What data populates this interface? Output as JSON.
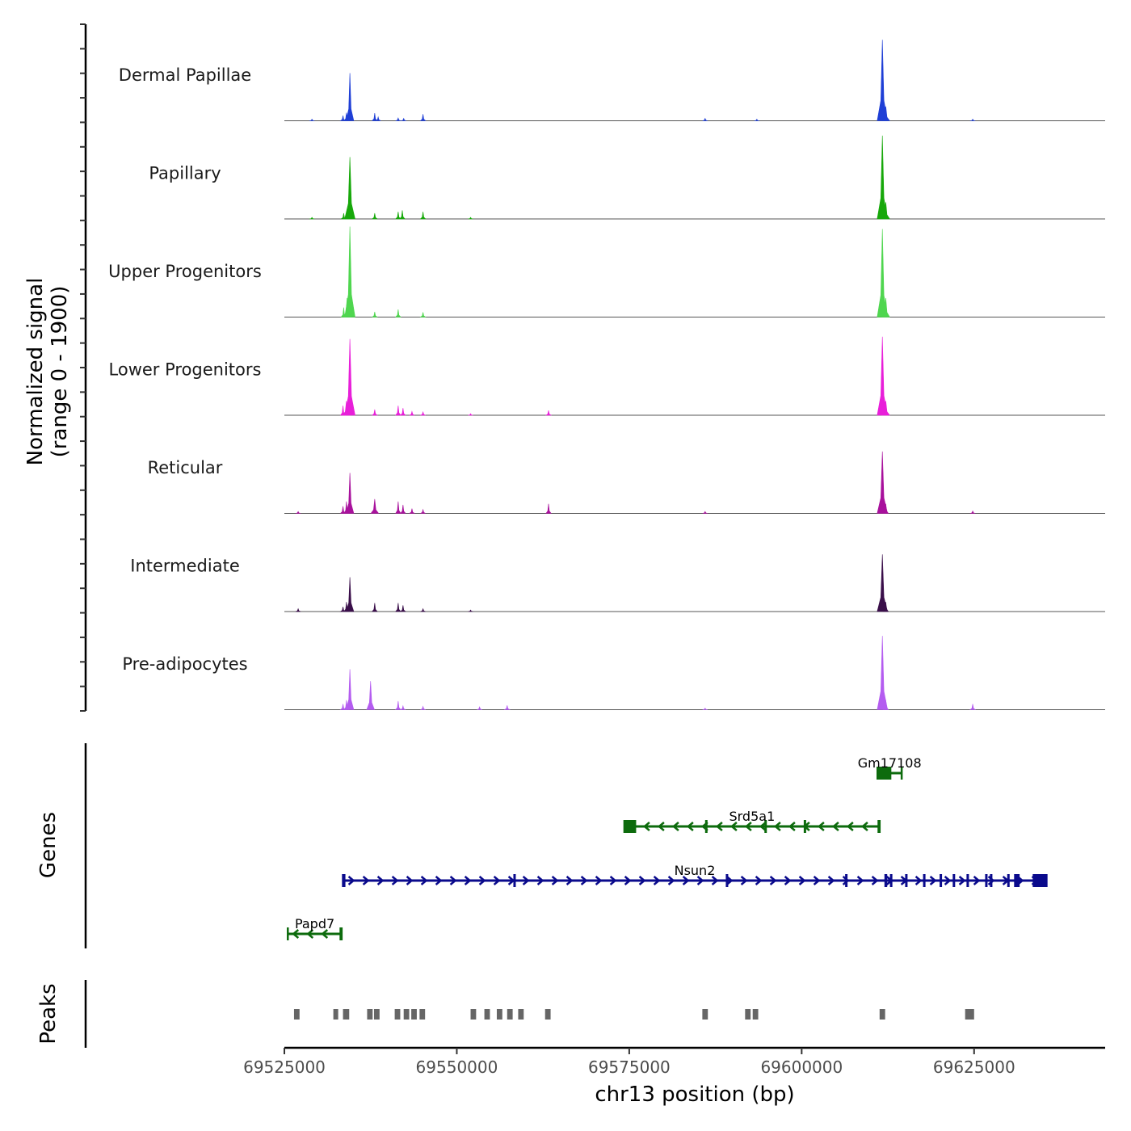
{
  "chart_data": {
    "type": "area",
    "title": "",
    "chromosome": "chr13",
    "xlabel": "chr13 position (bp)",
    "ylabel": "Normalized signal",
    "ylabel_range": "(range 0 - 1900)",
    "xlim": [
      69525000,
      69644000
    ],
    "ylim": [
      0,
      1900
    ],
    "x_ticks": [
      69525000,
      69550000,
      69575000,
      69600000,
      69625000
    ],
    "x_tick_labels": [
      "69525000",
      "69550000",
      "69575000",
      "69600000",
      "69625000"
    ],
    "series": [
      {
        "name": "Dermal Papillae",
        "color": "#1f3fd6",
        "peaks": [
          [
            69534500,
            1000
          ],
          [
            69534000,
            170
          ],
          [
            69533500,
            110
          ],
          [
            69538100,
            160
          ],
          [
            69538600,
            80
          ],
          [
            69541500,
            60
          ],
          [
            69542300,
            50
          ],
          [
            69545100,
            140
          ],
          [
            69529000,
            30
          ],
          [
            69586000,
            50
          ],
          [
            69593500,
            30
          ],
          [
            69611700,
            1700
          ],
          [
            69612200,
            300
          ],
          [
            69624800,
            20
          ]
        ]
      },
      {
        "name": "Papillary",
        "color": "#17a80a",
        "peaks": [
          [
            69534500,
            1300
          ],
          [
            69534100,
            200
          ],
          [
            69533600,
            120
          ],
          [
            69538100,
            120
          ],
          [
            69541500,
            150
          ],
          [
            69542100,
            180
          ],
          [
            69545100,
            150
          ],
          [
            69529000,
            30
          ],
          [
            69552000,
            30
          ],
          [
            69611700,
            1750
          ],
          [
            69612200,
            350
          ]
        ]
      },
      {
        "name": "Upper Progenitors",
        "color": "#4fd64f",
        "peaks": [
          [
            69534500,
            1900
          ],
          [
            69534100,
            400
          ],
          [
            69533600,
            200
          ],
          [
            69538100,
            110
          ],
          [
            69541500,
            160
          ],
          [
            69545100,
            100
          ],
          [
            69611700,
            1850
          ],
          [
            69612200,
            400
          ]
        ]
      },
      {
        "name": "Lower Progenitors",
        "color": "#e81fd9",
        "peaks": [
          [
            69534500,
            1600
          ],
          [
            69534000,
            300
          ],
          [
            69533500,
            200
          ],
          [
            69538100,
            120
          ],
          [
            69541500,
            200
          ],
          [
            69542200,
            150
          ],
          [
            69543500,
            80
          ],
          [
            69545100,
            70
          ],
          [
            69563300,
            100
          ],
          [
            69552000,
            30
          ],
          [
            69611700,
            1650
          ],
          [
            69612200,
            300
          ]
        ]
      },
      {
        "name": "Reticular",
        "color": "#a8119c",
        "peaks": [
          [
            69534500,
            850
          ],
          [
            69534000,
            250
          ],
          [
            69533500,
            150
          ],
          [
            69538100,
            300
          ],
          [
            69541500,
            250
          ],
          [
            69542200,
            180
          ],
          [
            69543500,
            100
          ],
          [
            69545100,
            80
          ],
          [
            69563300,
            200
          ],
          [
            69527000,
            40
          ],
          [
            69586000,
            40
          ],
          [
            69611700,
            1300
          ],
          [
            69612200,
            200
          ],
          [
            69624800,
            50
          ]
        ]
      },
      {
        "name": "Intermediate",
        "color": "#3a0f4a",
        "peaks": [
          [
            69534500,
            720
          ],
          [
            69534000,
            200
          ],
          [
            69533500,
            100
          ],
          [
            69538100,
            180
          ],
          [
            69541500,
            180
          ],
          [
            69542200,
            130
          ],
          [
            69545100,
            60
          ],
          [
            69527000,
            60
          ],
          [
            69552000,
            30
          ],
          [
            69611700,
            1200
          ],
          [
            69612200,
            200
          ]
        ]
      },
      {
        "name": "Pre-adipocytes",
        "color": "#b45cf0",
        "peaks": [
          [
            69534500,
            850
          ],
          [
            69534000,
            200
          ],
          [
            69533500,
            120
          ],
          [
            69537500,
            600
          ],
          [
            69541500,
            180
          ],
          [
            69542200,
            80
          ],
          [
            69545100,
            70
          ],
          [
            69553300,
            60
          ],
          [
            69557300,
            90
          ],
          [
            69586000,
            30
          ],
          [
            69611700,
            1550
          ],
          [
            69612200,
            200
          ],
          [
            69624800,
            120
          ]
        ]
      }
    ],
    "genes_label": "Genes",
    "genes": [
      {
        "name": "Gm17108",
        "strand": "-",
        "color": "#0d6b0d",
        "start": 69611000,
        "end": 69614500,
        "exons": [
          [
            69611000,
            69613000
          ]
        ]
      },
      {
        "name": "Srd5a1",
        "strand": "-",
        "color": "#0d6b0d",
        "start": 69574300,
        "end": 69611300,
        "exons": [
          [
            69574300,
            69576000
          ],
          [
            69586000,
            69586300
          ],
          [
            69594600,
            69594900
          ],
          [
            69600300,
            69600600
          ],
          [
            69611000,
            69611300
          ]
        ]
      },
      {
        "name": "Nsun2",
        "strand": "+",
        "color": "#0a0a8c",
        "start": 69533500,
        "end": 69635500,
        "exons": [
          [
            69533500,
            69533800
          ],
          [
            69558200,
            69558500
          ],
          [
            69589000,
            69589300
          ],
          [
            69606300,
            69606600
          ],
          [
            69612000,
            69612400
          ],
          [
            69612800,
            69613100
          ],
          [
            69615000,
            69615300
          ],
          [
            69617600,
            69617900
          ],
          [
            69620000,
            69620300
          ],
          [
            69621900,
            69622200
          ],
          [
            69623900,
            69624200
          ],
          [
            69626600,
            69626900
          ],
          [
            69627300,
            69627600
          ],
          [
            69629800,
            69630100
          ],
          [
            69630800,
            69631600
          ],
          [
            69633500,
            69635500
          ]
        ]
      },
      {
        "name": "Papd7",
        "strand": "-",
        "color": "#0d6b0d",
        "start": 69525500,
        "end": 69533300,
        "exons": [
          [
            69533000,
            69533300
          ]
        ]
      }
    ],
    "peaks_label": "Peaks",
    "peak_regions": [
      [
        69526400,
        69527200
      ],
      [
        69532100,
        69532800
      ],
      [
        69533500,
        69534400
      ],
      [
        69537000,
        69537800
      ],
      [
        69538000,
        69538800
      ],
      [
        69541000,
        69541800
      ],
      [
        69542300,
        69543100
      ],
      [
        69543400,
        69544200
      ],
      [
        69544600,
        69545400
      ],
      [
        69552000,
        69552800
      ],
      [
        69554000,
        69554800
      ],
      [
        69555800,
        69556600
      ],
      [
        69557300,
        69558100
      ],
      [
        69558900,
        69559700
      ],
      [
        69562800,
        69563600
      ],
      [
        69585600,
        69586400
      ],
      [
        69591800,
        69592600
      ],
      [
        69592900,
        69593700
      ],
      [
        69611300,
        69612100
      ],
      [
        69623700,
        69624500
      ],
      [
        69624200,
        69625000
      ]
    ]
  }
}
